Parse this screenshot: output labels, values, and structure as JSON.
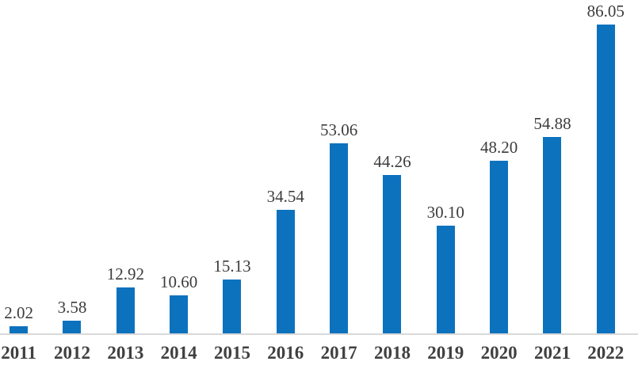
{
  "chart_data": {
    "type": "bar",
    "title": "",
    "xlabel": "",
    "ylabel": "",
    "categories": [
      "2011",
      "2012",
      "2013",
      "2014",
      "2015",
      "2016",
      "2017",
      "2018",
      "2019",
      "2020",
      "2021",
      "2022"
    ],
    "values": [
      2.02,
      3.58,
      12.92,
      10.6,
      15.13,
      34.54,
      53.06,
      44.26,
      30.1,
      48.2,
      54.88,
      86.05
    ],
    "value_labels": [
      "2.02",
      "3.58",
      "12.92",
      "10.60",
      "15.13",
      "34.54",
      "53.06",
      "44.26",
      "30.10",
      "48.20",
      "54.88",
      "86.05"
    ],
    "ylim": [
      0,
      93
    ],
    "grid": false,
    "legend": false,
    "data_labels_position": "above-bar",
    "colors": {
      "bar": "#0C72BE",
      "axis_line": "#D9D9D9",
      "value_label_text": "#3C3C3C",
      "category_label_text": "#404040",
      "background": "#FFFFFF"
    }
  }
}
